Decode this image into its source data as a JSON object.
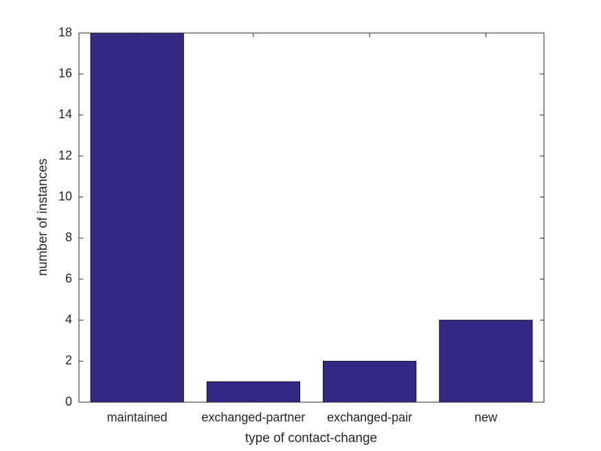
{
  "chart_data": {
    "type": "bar",
    "x_label": "type of contact-change",
    "y_label": "number of instances",
    "categories": [
      "maintained",
      "exchanged-partner",
      "exchanged-pair",
      "new"
    ],
    "values": [
      18,
      1,
      2,
      4
    ],
    "color": "#332a86",
    "ylim": [
      0,
      18
    ],
    "yticks": [
      0,
      2,
      4,
      6,
      8,
      10,
      12,
      14,
      16,
      18
    ],
    "grid": false
  }
}
